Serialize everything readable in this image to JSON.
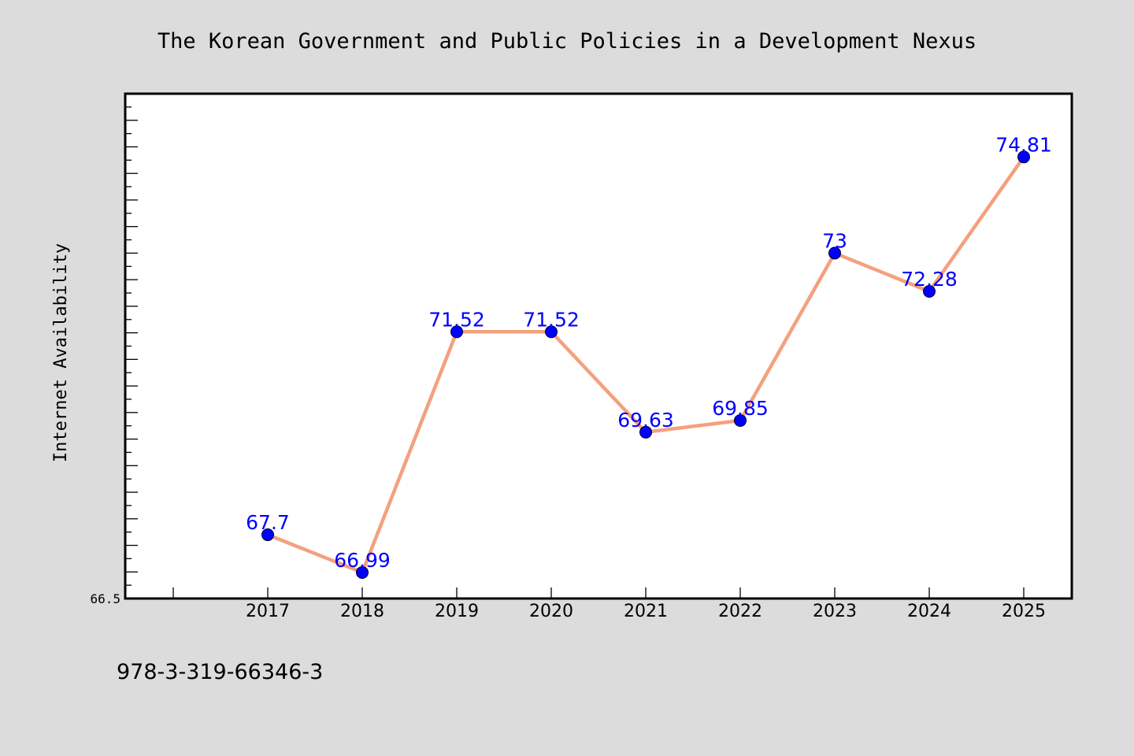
{
  "chart_data": {
    "type": "line",
    "title": "The Korean Government and Public Policies in a Development Nexus",
    "xlabel": "",
    "ylabel": "Internet Availability",
    "categories": [
      "2017",
      "2018",
      "2019",
      "2020",
      "2021",
      "2022",
      "2023",
      "2024",
      "2025"
    ],
    "series": [
      {
        "values": [
          67.7,
          66.99,
          71.52,
          71.52,
          69.63,
          69.85,
          73,
          72.28,
          74.81
        ]
      }
    ],
    "data_labels": [
      "67.7",
      "66.99",
      "71.52",
      "71.52",
      "69.63",
      "69.85",
      "73",
      "72.28",
      "74.81"
    ],
    "ylim": [
      66.5,
      76.0
    ],
    "ytick_labels_shown": [
      "66.5"
    ],
    "grid": false,
    "legend": "none"
  },
  "footer": {
    "text": "978-3-319-66346-3"
  },
  "colors": {
    "background": "#dcdcdc",
    "plot_background": "#ffffff",
    "line": "#f4a07e",
    "marker": "#0000ff",
    "data_label": "#0000ff"
  }
}
